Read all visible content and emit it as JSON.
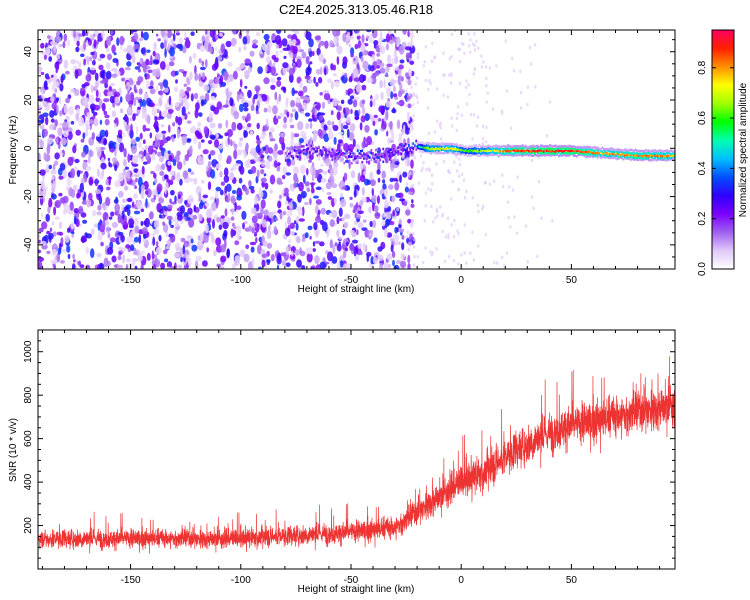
{
  "chart_data": [
    {
      "type": "heatmap",
      "title": "C2E4.2025.313.05.46.R18",
      "xlabel": "Height of straight line (km)",
      "ylabel": "Frequency (Hz)",
      "xlim": [
        -192,
        97
      ],
      "ylim": [
        -50,
        49
      ],
      "xticks": [
        -150,
        -100,
        -50,
        0,
        50
      ],
      "yticks": [
        -40,
        -20,
        0,
        20,
        40
      ],
      "colorbar": {
        "label": "Normalized spectral amplitude",
        "range": [
          0.0,
          0.95
        ],
        "ticks": [
          0.0,
          0.2,
          0.4,
          0.6,
          0.8
        ],
        "tick_labels": [
          "0.0",
          "0.2",
          "0.4",
          "0.6",
          "0.8"
        ],
        "colors": [
          "#ffffff",
          "#e0c8f8",
          "#a060f0",
          "#7a00ff",
          "#3000ff",
          "#0050ff",
          "#00c0ff",
          "#00ffb0",
          "#00ff00",
          "#a0ff00",
          "#ffff00",
          "#ff9000",
          "#ff2000",
          "#ff0060"
        ]
      },
      "noise_region": {
        "x": [
          -192,
          -22
        ],
        "amplitude_range": [
          0.05,
          0.35
        ]
      },
      "signal_ridge": [
        {
          "x": -80,
          "y": -3,
          "amp": 0.22
        },
        {
          "x": -70,
          "y": 0,
          "amp": 0.3
        },
        {
          "x": -60,
          "y": -2,
          "amp": 0.28
        },
        {
          "x": -50,
          "y": -3,
          "amp": 0.35
        },
        {
          "x": -40,
          "y": -3,
          "amp": 0.3
        },
        {
          "x": -30,
          "y": -2,
          "amp": 0.35
        },
        {
          "x": -22,
          "y": 1,
          "amp": 0.4
        },
        {
          "x": -15,
          "y": 0,
          "amp": 0.7
        },
        {
          "x": -5,
          "y": 0,
          "amp": 0.75
        },
        {
          "x": 2,
          "y": -1,
          "amp": 0.6
        },
        {
          "x": 10,
          "y": -1,
          "amp": 0.7
        },
        {
          "x": 20,
          "y": -1,
          "amp": 0.85
        },
        {
          "x": 35,
          "y": -1,
          "amp": 0.9
        },
        {
          "x": 50,
          "y": -1,
          "amp": 0.9
        },
        {
          "x": 65,
          "y": -2,
          "amp": 0.8
        },
        {
          "x": 80,
          "y": -3,
          "amp": 0.85
        },
        {
          "x": 97,
          "y": -3,
          "amp": 0.8
        }
      ]
    },
    {
      "type": "line",
      "xlabel": "Height of straight line (km)",
      "ylabel": "SNR (10 * v/v)",
      "xlim": [
        -192,
        97
      ],
      "ylim": [
        0,
        1100
      ],
      "xticks": [
        -150,
        -100,
        -50,
        0,
        50
      ],
      "yticks": [
        200,
        400,
        600,
        800,
        1000
      ],
      "color": "#ee3333",
      "trend": [
        {
          "x": -192,
          "mean": 140,
          "spread": 80
        },
        {
          "x": -100,
          "mean": 140,
          "spread": 80
        },
        {
          "x": -50,
          "mean": 170,
          "spread": 90
        },
        {
          "x": -30,
          "mean": 190,
          "spread": 100
        },
        {
          "x": -15,
          "mean": 300,
          "spread": 120
        },
        {
          "x": 0,
          "mean": 400,
          "spread": 140
        },
        {
          "x": 10,
          "mean": 440,
          "spread": 150
        },
        {
          "x": 25,
          "mean": 550,
          "spread": 160
        },
        {
          "x": 45,
          "mean": 650,
          "spread": 170
        },
        {
          "x": 70,
          "mean": 700,
          "spread": 180
        },
        {
          "x": 97,
          "mean": 760,
          "spread": 180
        }
      ]
    }
  ]
}
